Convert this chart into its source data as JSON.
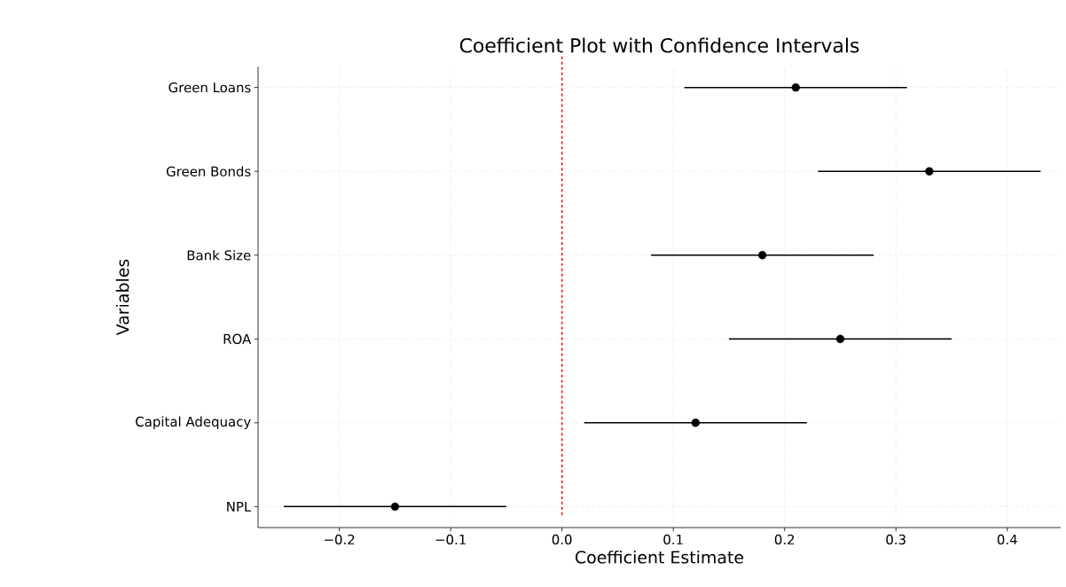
{
  "chart_data": {
    "type": "scatter",
    "orientation": "horizontal",
    "title": "Coefficient Plot with Confidence Intervals",
    "xlabel": "Coefficient Estimate",
    "ylabel": "Variables",
    "categories": [
      "Green Loans",
      "Green Bonds",
      "Bank Size",
      "ROA",
      "Capital Adequacy",
      "NPL"
    ],
    "values": [
      0.21,
      0.33,
      0.18,
      0.25,
      0.12,
      -0.15
    ],
    "errors": [
      0.1,
      0.1,
      0.1,
      0.1,
      0.1,
      0.1
    ],
    "color": "#000000",
    "marker": "circle",
    "grid": true,
    "xlim": [
      -0.273,
      0.448
    ],
    "xticks": [
      {
        "value": -0.2,
        "label": "−0.2"
      },
      {
        "value": -0.1,
        "label": "−0.1"
      },
      {
        "value": 0,
        "label": "0.0"
      },
      {
        "value": 0.1,
        "label": "0.1"
      },
      {
        "value": 0.2,
        "label": "0.2"
      },
      {
        "value": 0.3,
        "label": "0.3"
      },
      {
        "value": 0.4,
        "label": "0.4"
      }
    ],
    "ref_lines": [
      {
        "axis": "x",
        "value": 0,
        "color": "#ff0000",
        "line_style": "dashed"
      }
    ]
  }
}
